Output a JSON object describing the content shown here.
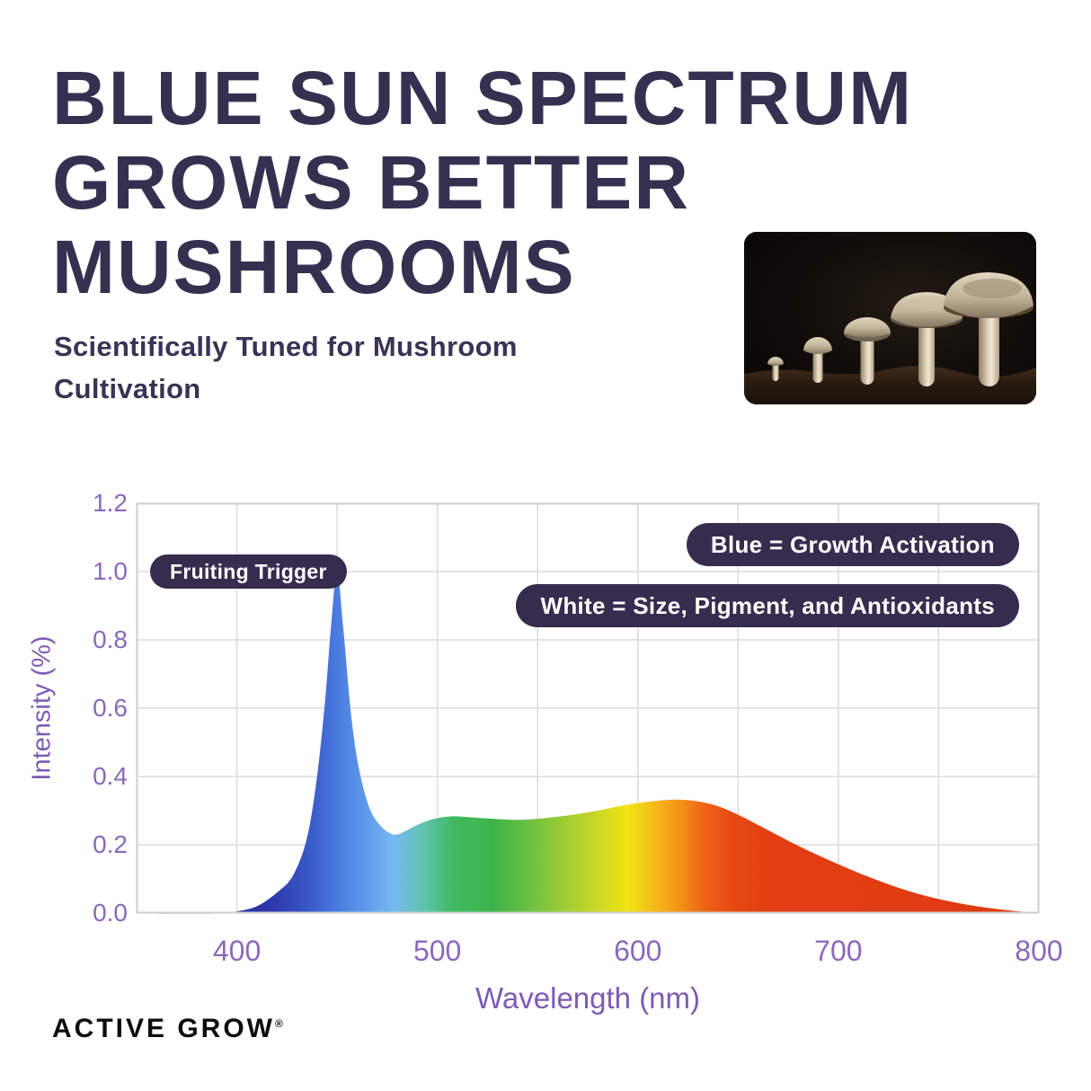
{
  "header": {
    "title_lines": [
      "BLUE SUN SPECTRUM",
      "GROWS BETTER",
      "MUSHROOMS"
    ],
    "subtitle_lines": [
      "Scientifically Tuned for Mushroom",
      "Cultivation"
    ]
  },
  "footer": {
    "brand": "ACTIVE GROW",
    "registered_mark": "®"
  },
  "colors": {
    "title_text": "#363050",
    "axis_tick_purple": "#8a69ba",
    "axis_title_purple": "#7d5cb3",
    "pill_background": "#362c4e",
    "pill_text": "#ffffff",
    "grid": "#dcdcdc",
    "annotation_dot": "#2f2840",
    "logo_text": "#0d0d0d"
  },
  "chart_data": {
    "type": "area",
    "title": "",
    "xlabel": "Wavelength (nm)",
    "ylabel": "Intensity (%)",
    "x_range": [
      350,
      800
    ],
    "y_range": [
      0,
      1.2
    ],
    "x_grid_step": 50,
    "grid": true,
    "x_ticks": [
      "400",
      "500",
      "600",
      "700",
      "800"
    ],
    "x_tick_values": [
      400,
      500,
      600,
      700,
      800
    ],
    "y_ticks": [
      "1.2",
      "1.0",
      "0.8",
      "0.6",
      "0.4",
      "0.2",
      "0.0"
    ],
    "y_tick_values": [
      1.2,
      1.0,
      0.8,
      0.6,
      0.4,
      0.2,
      0.0
    ],
    "series": [
      {
        "name": "Blue Sun Spectrum",
        "x": [
          350,
          390,
          400,
          410,
          420,
          428,
          435,
          440,
          444,
          447,
          450,
          453,
          457,
          461,
          466,
          471,
          476,
          480,
          485,
          490,
          495,
          500,
          505,
          510,
          520,
          530,
          540,
          550,
          560,
          570,
          580,
          590,
          600,
          610,
          620,
          630,
          640,
          650,
          660,
          670,
          680,
          690,
          700,
          710,
          720,
          730,
          740,
          750,
          760,
          770,
          780,
          790,
          800
        ],
        "y": [
          0,
          0,
          0.005,
          0.02,
          0.06,
          0.11,
          0.22,
          0.4,
          0.62,
          0.84,
          1.0,
          0.84,
          0.58,
          0.42,
          0.31,
          0.26,
          0.235,
          0.23,
          0.243,
          0.258,
          0.27,
          0.278,
          0.282,
          0.283,
          0.279,
          0.275,
          0.273,
          0.276,
          0.282,
          0.29,
          0.3,
          0.312,
          0.322,
          0.329,
          0.332,
          0.327,
          0.313,
          0.288,
          0.258,
          0.227,
          0.197,
          0.169,
          0.143,
          0.118,
          0.095,
          0.074,
          0.056,
          0.041,
          0.029,
          0.019,
          0.011,
          0.005,
          0.001
        ],
        "gradient_stops": [
          {
            "nm": 350,
            "color": "#232c8d"
          },
          {
            "nm": 415,
            "color": "#2b35a8"
          },
          {
            "nm": 438,
            "color": "#3a5cca"
          },
          {
            "nm": 450,
            "color": "#4a7ce0"
          },
          {
            "nm": 462,
            "color": "#5b94e9"
          },
          {
            "nm": 478,
            "color": "#76b8f2"
          },
          {
            "nm": 492,
            "color": "#62c3b4"
          },
          {
            "nm": 508,
            "color": "#40ba62"
          },
          {
            "nm": 528,
            "color": "#3db449"
          },
          {
            "nm": 555,
            "color": "#86c63b"
          },
          {
            "nm": 580,
            "color": "#cdd725"
          },
          {
            "nm": 595,
            "color": "#f0e414"
          },
          {
            "nm": 610,
            "color": "#f6b41a"
          },
          {
            "nm": 622,
            "color": "#f28f15"
          },
          {
            "nm": 633,
            "color": "#ee6317"
          },
          {
            "nm": 648,
            "color": "#e64914"
          },
          {
            "nm": 668,
            "color": "#e23d12"
          },
          {
            "nm": 800,
            "color": "#de3a11"
          }
        ]
      }
    ],
    "annotations": [
      {
        "label": "Fruiting Trigger",
        "x": 450,
        "y": 1.0
      }
    ],
    "legend": [
      "Blue = Growth Activation",
      "White = Size, Pigment, and Antioxidants"
    ],
    "legend_position": "top-right"
  }
}
